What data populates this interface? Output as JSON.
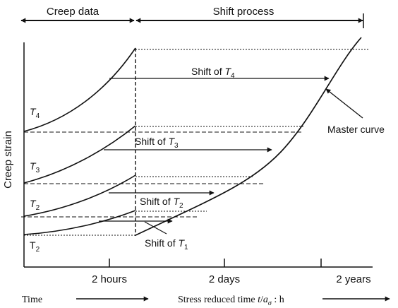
{
  "header": {
    "creep_data_label": "Creep data",
    "shift_process_label": "Shift process"
  },
  "axes": {
    "y_label": "Creep strain",
    "x_ticks": [
      "2  hours",
      "2 days",
      "2 years"
    ]
  },
  "curve_labels": {
    "t4": {
      "letter": "T",
      "sub": "4"
    },
    "t3": {
      "letter": "T",
      "sub": "3"
    },
    "t2_upper": {
      "letter": "T",
      "sub": "2"
    },
    "t2_lower": {
      "letter": "T",
      "sub": "2"
    }
  },
  "shift_labels": {
    "t4": {
      "prefix": "Shift of ",
      "letter": "T",
      "sub": "4"
    },
    "t3": {
      "prefix": "Shift of ",
      "letter": "T",
      "sub": "3"
    },
    "t2": {
      "prefix": "Shift of ",
      "letter": "T",
      "sub": "2"
    },
    "t1": {
      "prefix": "Shift of ",
      "letter": "T",
      "sub": "1"
    }
  },
  "master_curve_label": "Master curve",
  "footer": {
    "time_label": "Time",
    "stress_prefix": "Stress reduced time ",
    "stress_t": "t",
    "stress_slash": "/",
    "stress_a": "a",
    "stress_sigma": "σ",
    "stress_unit": " : h"
  }
}
